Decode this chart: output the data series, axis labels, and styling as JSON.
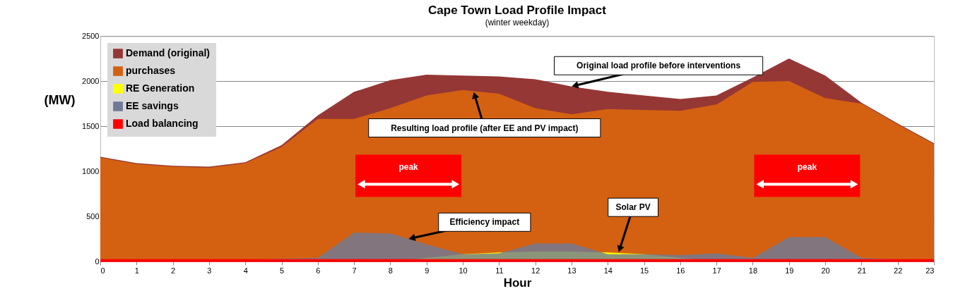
{
  "chart_data": {
    "type": "area",
    "title": "Cape Town Load Profile Impact",
    "subtitle": "(winter weekday)",
    "xlabel": "Hour",
    "ylabel": "(MW)",
    "x": [
      0,
      1,
      2,
      3,
      4,
      5,
      6,
      7,
      8,
      9,
      10,
      11,
      12,
      13,
      14,
      15,
      16,
      17,
      18,
      19,
      20,
      21,
      22,
      23
    ],
    "series": [
      {
        "name": "Demand (original)",
        "color": "#953735",
        "values": [
          1160,
          1090,
          1060,
          1050,
          1100,
          1290,
          1620,
          1880,
          2010,
          2070,
          2060,
          2050,
          2020,
          1940,
          1880,
          1840,
          1800,
          1840,
          2040,
          2250,
          2060,
          1760,
          1530,
          1310
        ]
      },
      {
        "name": "purchases",
        "color": "#d46112",
        "values": [
          1150,
          1080,
          1050,
          1040,
          1090,
          1270,
          1580,
          1580,
          1700,
          1840,
          1900,
          1860,
          1700,
          1630,
          1690,
          1680,
          1670,
          1740,
          1990,
          2000,
          1810,
          1750,
          1520,
          1300
        ]
      },
      {
        "name": "RE Generation",
        "color": "#ffff00",
        "values": [
          0,
          0,
          0,
          0,
          0,
          0,
          0,
          0,
          0,
          40,
          80,
          100,
          110,
          110,
          100,
          80,
          40,
          0,
          0,
          0,
          0,
          0,
          0,
          0
        ]
      },
      {
        "name": "EE savings",
        "color": "#6e7a98",
        "values": [
          10,
          10,
          10,
          20,
          20,
          30,
          40,
          320,
          310,
          190,
          80,
          90,
          200,
          200,
          80,
          80,
          70,
          90,
          40,
          270,
          270,
          40,
          20,
          10
        ]
      },
      {
        "name": "Load balancing",
        "type": "line",
        "color": "#ff0000",
        "values": [
          10,
          10,
          10,
          10,
          10,
          10,
          10,
          10,
          10,
          10,
          10,
          10,
          10,
          10,
          10,
          10,
          10,
          10,
          10,
          10,
          10,
          10,
          10,
          10
        ]
      }
    ],
    "xlim": [
      0,
      23
    ],
    "xticks": [
      0,
      1,
      2,
      3,
      4,
      5,
      6,
      7,
      8,
      9,
      10,
      11,
      12,
      13,
      14,
      15,
      16,
      17,
      18,
      19,
      20,
      21,
      22,
      23
    ],
    "ylim": [
      0,
      2500
    ],
    "yticks": [
      0,
      500,
      1000,
      1500,
      2000,
      2500
    ],
    "grid": "y",
    "legend": "top left",
    "annotations": [
      {
        "text": "Original load profile before interventions",
        "x": 13,
        "y": 1940
      },
      {
        "text": "Resulting load profile (after EE and PV impact)",
        "x": 10.3,
        "y": 1880
      },
      "peak",
      "peak",
      {
        "text": "Efficiency impact",
        "x": 8.5,
        "y": 250
      },
      {
        "text": "Solar PV",
        "x": 14.3,
        "y": 100
      }
    ]
  }
}
